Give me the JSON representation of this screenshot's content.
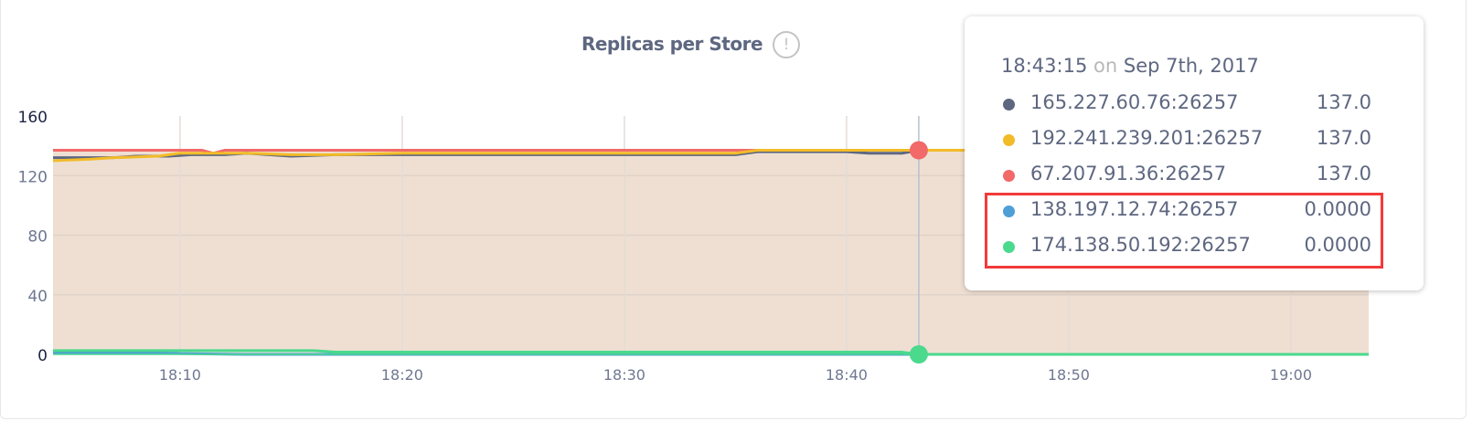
{
  "chart_data": {
    "type": "area",
    "title": "Replicas per Store",
    "xlabel": "",
    "ylabel": "",
    "xlim": [
      "18:04:17",
      "19:03:30"
    ],
    "ylim": [
      0,
      160
    ],
    "y_ticks": [
      "0",
      "40",
      "80",
      "120",
      "160"
    ],
    "x_ticks": [
      "18:10",
      "18:20",
      "18:30",
      "18:40",
      "18:50",
      "19:00"
    ],
    "grid": true,
    "series": [
      {
        "name": "165.227.60.76:26257",
        "color": "#5e6780",
        "points": [
          [
            "18:04:17",
            132
          ],
          [
            "18:07:00",
            132
          ],
          [
            "18:08:00",
            133
          ],
          [
            "18:09:30",
            133
          ],
          [
            "18:10:30",
            134
          ],
          [
            "18:12:00",
            134
          ],
          [
            "18:13:00",
            135
          ],
          [
            "18:14:00",
            134
          ],
          [
            "18:15:00",
            133
          ],
          [
            "18:17:00",
            134
          ],
          [
            "18:35:00",
            134
          ],
          [
            "18:36:00",
            136
          ],
          [
            "18:40:00",
            136
          ],
          [
            "18:41:00",
            135
          ],
          [
            "18:42:30",
            135
          ],
          [
            "18:43:15",
            137
          ],
          [
            "19:03:30",
            137
          ]
        ]
      },
      {
        "name": "192.241.239.201:26257",
        "color": "#f2bb28",
        "points": [
          [
            "18:04:17",
            130
          ],
          [
            "18:06:00",
            131
          ],
          [
            "18:07:00",
            132
          ],
          [
            "18:09:00",
            133
          ],
          [
            "18:10:00",
            135
          ],
          [
            "18:13:00",
            135
          ],
          [
            "18:15:00",
            134
          ],
          [
            "18:17:00",
            134
          ],
          [
            "18:20:00",
            135
          ],
          [
            "18:35:00",
            135
          ],
          [
            "18:36:00",
            137
          ],
          [
            "19:03:30",
            137
          ]
        ]
      },
      {
        "name": "67.207.91.36:26257",
        "color": "#f16969",
        "points": [
          [
            "18:04:17",
            137
          ],
          [
            "18:11:00",
            137
          ],
          [
            "18:11:30",
            135
          ],
          [
            "18:12:00",
            137
          ],
          [
            "19:03:30",
            137
          ]
        ]
      },
      {
        "name": "138.197.12.74:26257",
        "color": "#4e9fd6",
        "points": [
          [
            "18:04:17",
            1
          ],
          [
            "18:09:00",
            1
          ],
          [
            "18:10:00",
            0.5
          ],
          [
            "18:13:00",
            0
          ],
          [
            "19:03:30",
            0
          ]
        ]
      },
      {
        "name": "174.138.50.192:26257",
        "color": "#4ad98d",
        "points": [
          [
            "18:04:17",
            2.5
          ],
          [
            "18:16:00",
            2.5
          ],
          [
            "18:17:00",
            1.5
          ],
          [
            "18:42:30",
            1.5
          ],
          [
            "18:43:15",
            0
          ],
          [
            "19:03:30",
            0
          ]
        ]
      }
    ],
    "fill_color": "#efdfd3",
    "cursor": "18:43:15"
  },
  "tooltip": {
    "time": "18:43:15",
    "on": "on",
    "date": "Sep 7th, 2017",
    "rows": [
      {
        "label": "165.227.60.76:26257",
        "value": "137.0",
        "color": "#5e6780"
      },
      {
        "label": "192.241.239.201:26257",
        "value": "137.0",
        "color": "#f2bb28"
      },
      {
        "label": "67.207.91.36:26257",
        "value": "137.0",
        "color": "#f16969"
      },
      {
        "label": "138.197.12.74:26257",
        "value": "0.0000",
        "color": "#4e9fd6"
      },
      {
        "label": "174.138.50.192:26257",
        "value": "0.0000",
        "color": "#4ad98d"
      }
    ],
    "highlight_color": "#f23a3a"
  },
  "icons": {
    "info": "exclamation-circle-icon"
  },
  "info_glyph": "!"
}
